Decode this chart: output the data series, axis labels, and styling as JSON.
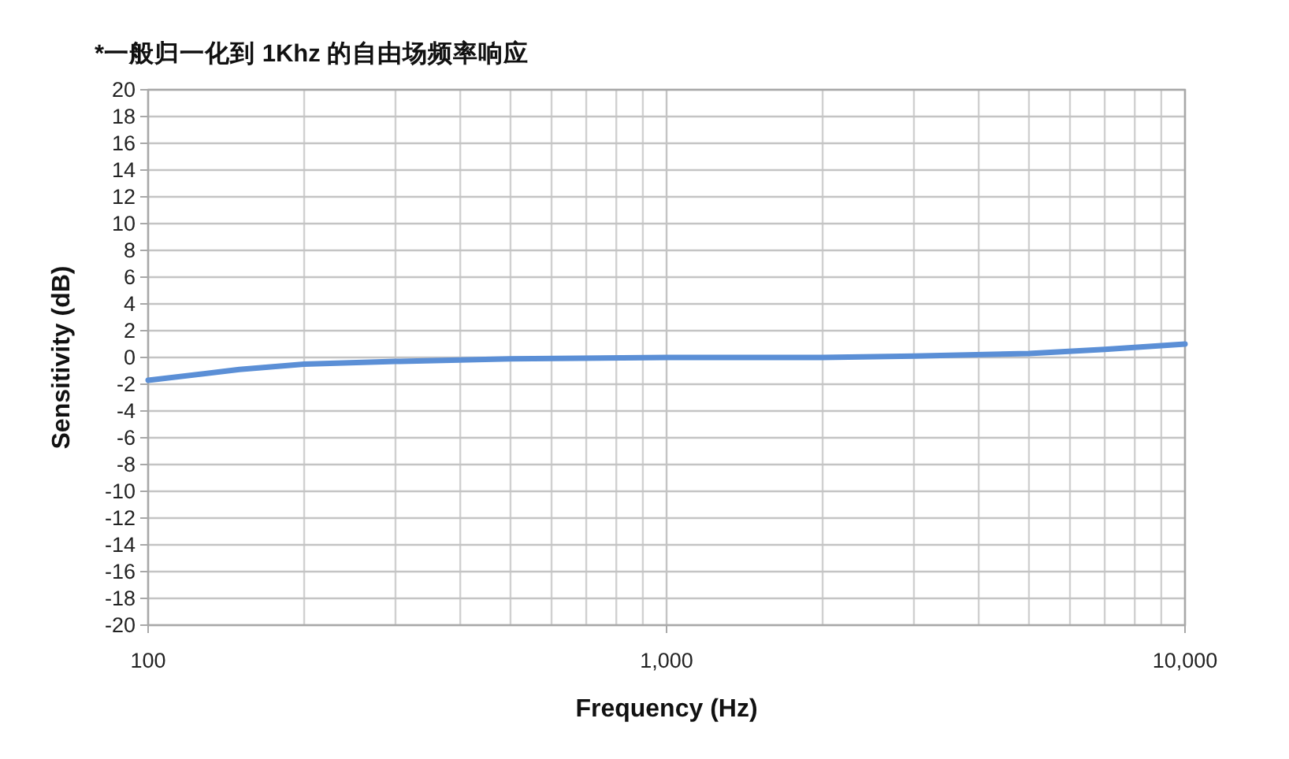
{
  "chart_data": {
    "type": "line",
    "title": "*一般归一化到 1Khz 的自由场频率响应",
    "xlabel": "Frequency (Hz)",
    "ylabel": "Sensitivity (dB)",
    "x": [
      100,
      150,
      200,
      300,
      500,
      1000,
      2000,
      3000,
      5000,
      7000,
      10000
    ],
    "series": [
      {
        "color": "#5b8fd6",
        "values": [
          -1.7,
          -0.9,
          -0.5,
          -0.3,
          -0.1,
          0,
          0,
          0.1,
          0.3,
          0.6,
          1.0
        ]
      }
    ],
    "xlim": [
      100,
      10000
    ],
    "ylim": [
      -20,
      20
    ],
    "xticks": [
      {
        "value": 100,
        "label": "100"
      },
      {
        "value": 1000,
        "label": "1,000"
      },
      {
        "value": 10000,
        "label": "10,000"
      }
    ],
    "yticks": [
      -20,
      -18,
      -16,
      -14,
      -12,
      -10,
      -8,
      -6,
      -4,
      -2,
      0,
      2,
      4,
      6,
      8,
      10,
      12,
      14,
      16,
      18,
      20
    ],
    "log": "x",
    "grid": true
  }
}
